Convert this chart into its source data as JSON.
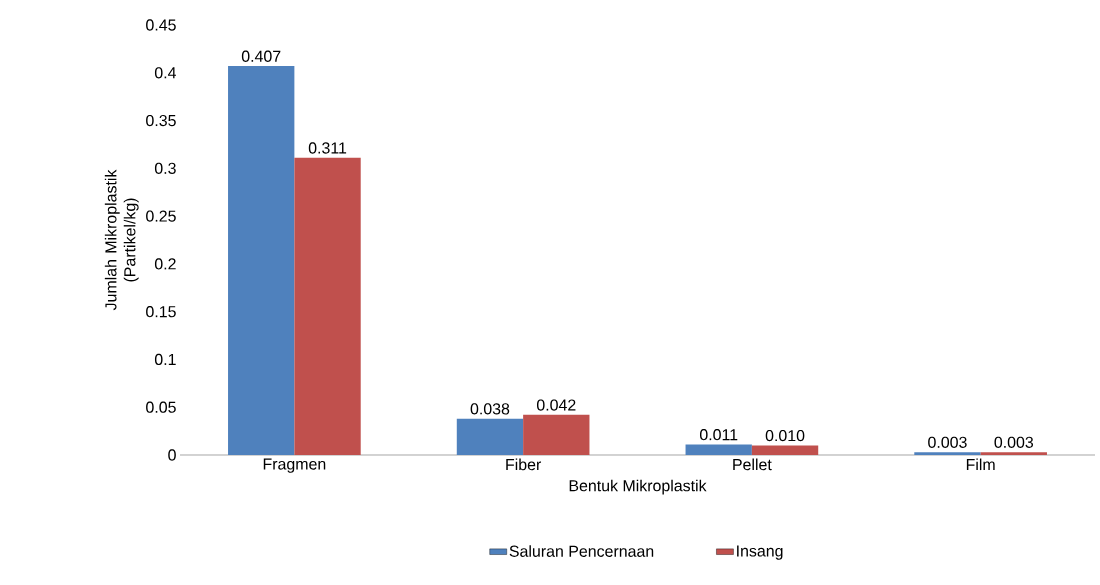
{
  "chart_data": {
    "type": "bar",
    "xlabel": "Bentuk Mikroplastik",
    "ylabel": "Jumlah Mikroplastik (Partikel/kg)",
    "categories": [
      "Fragmen",
      "Fiber",
      "Pellet",
      "Film"
    ],
    "series": [
      {
        "name": "Saluran Pencernaan",
        "color": "#4f81bd",
        "values": [
          0.407,
          0.038,
          0.011,
          0.003
        ],
        "value_labels": [
          "0.407",
          "0.038",
          "0.011",
          "0.003"
        ]
      },
      {
        "name": "Insang",
        "color": "#c0504d",
        "values": [
          0.311,
          0.042,
          0.01,
          0.003
        ],
        "value_labels": [
          "0.311",
          "0.042",
          "0.010",
          "0.003"
        ]
      }
    ],
    "ylim": [
      0,
      0.45
    ],
    "yticks": [
      0,
      0.05,
      0.1,
      0.15,
      0.2,
      0.25,
      0.3,
      0.35,
      0.4,
      0.45
    ],
    "grid": false,
    "legend": "bottom"
  }
}
